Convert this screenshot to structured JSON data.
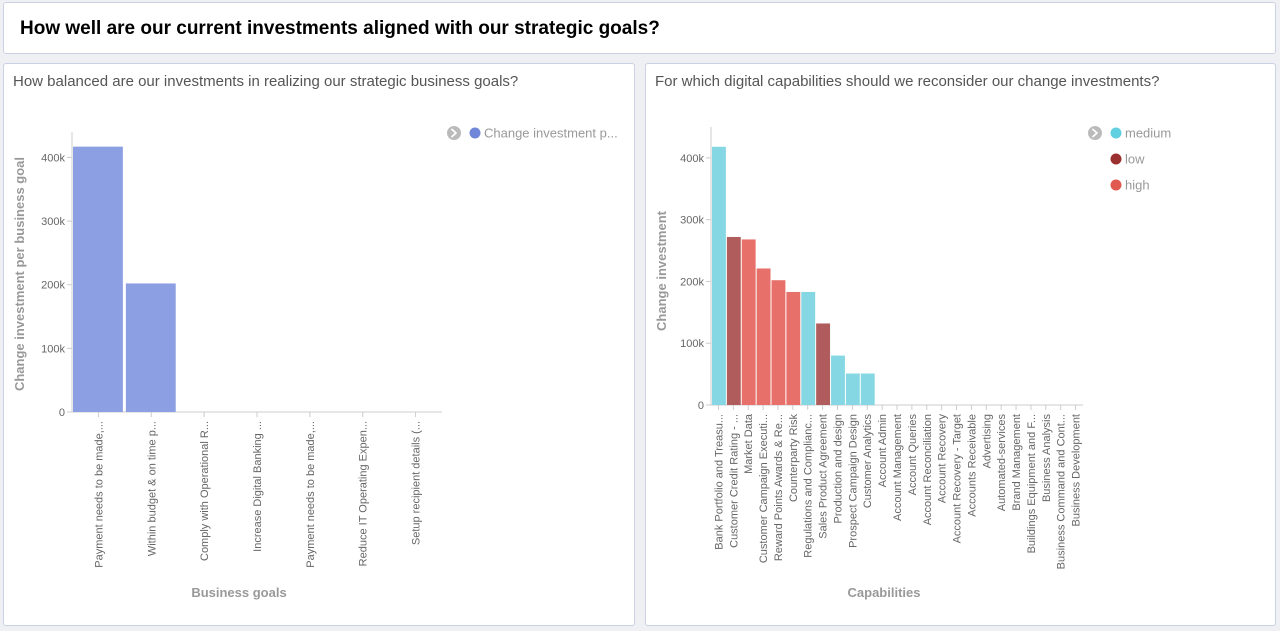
{
  "header": {
    "title": "How well are our current investments aligned with our strategic goals?"
  },
  "left_panel": {
    "title": "How balanced are our investments in realizing our strategic business goals?"
  },
  "right_panel": {
    "title": "For which digital capabilities should we reconsider our change investments?"
  },
  "chart_data": [
    {
      "type": "bar",
      "title": "How balanced are our investments in realizing our strategic business goals?",
      "xlabel": "Business goals",
      "ylabel": "Change investment per business goal",
      "ylim": [
        0,
        440000
      ],
      "yticks": [
        0,
        100000,
        200000,
        300000,
        400000
      ],
      "ytick_labels": [
        "0",
        "100k",
        "200k",
        "300k",
        "400k"
      ],
      "categories": [
        "Payment needs to be made,...",
        "Within budget & on time p...",
        "Comply with Operational R...",
        "Increase Digital Banking ...",
        "Payment needs to be made,...",
        "Reduce IT Operating Expen...",
        "Setup recipient details (..."
      ],
      "series": [
        {
          "name": "Change investment p...",
          "values": [
            417000,
            202000,
            0,
            0,
            0,
            0,
            0
          ]
        }
      ],
      "colors": {
        "bar": "#8b9fe2",
        "legend_dot": "#6f86d9",
        "legend_toggle": "#bbbbbb"
      },
      "legend": {
        "position": "top-right",
        "entries": [
          {
            "label": "Change investment p...",
            "color": "#6f86d9"
          }
        ]
      }
    },
    {
      "type": "bar",
      "title": "For which digital capabilities should we reconsider our change investments?",
      "xlabel": "Capabilities",
      "ylabel": "Change investment",
      "ylim": [
        0,
        450000
      ],
      "yticks": [
        0,
        100000,
        200000,
        300000,
        400000
      ],
      "ytick_labels": [
        "0",
        "100k",
        "200k",
        "300k",
        "400k"
      ],
      "categories": [
        "Bank Portfolio and Treasu...",
        "Customer Credit Rating - ...",
        "Market Data",
        "Customer Campaign Executi...",
        "Reward Points Awards & Re...",
        "Counterparty Risk",
        "Regulations and Complianc...",
        "Sales Product Agreement",
        "Production and design",
        "Prospect Campaign Design",
        "Customer Analytics",
        "Account Admin",
        "Account Management",
        "Account Queries",
        "Account Reconciliation",
        "Account Recovery",
        "Account Recovery - Target",
        "Accounts Receivable",
        "Advertising",
        "Automated-services",
        "Brand Management",
        "Buildings Equipment and F...",
        "Business Analysis",
        "Business Command and Cont...",
        "Business Development"
      ],
      "values": [
        418000,
        272000,
        268000,
        221000,
        202000,
        183000,
        183000,
        132000,
        80000,
        51000,
        51000,
        0,
        0,
        0,
        0,
        0,
        0,
        0,
        0,
        0,
        0,
        0,
        0,
        0,
        0
      ],
      "risk": [
        "medium",
        "low",
        "high",
        "high",
        "high",
        "high",
        "medium",
        "low",
        "medium",
        "medium",
        "medium",
        "",
        "",
        "",
        "",
        "",
        "",
        "",
        "",
        "",
        "",
        "",
        "",
        "",
        ""
      ],
      "colors": {
        "medium": "#85d8e3",
        "low": "#b05c5c",
        "high": "#e8706a",
        "legend_medium": "#62d0e0",
        "legend_low": "#9b3030",
        "legend_high": "#e05a50",
        "legend_toggle": "#bbbbbb"
      },
      "legend": {
        "position": "top-right",
        "entries": [
          {
            "label": "medium",
            "key": "medium"
          },
          {
            "label": "low",
            "key": "low"
          },
          {
            "label": "high",
            "key": "high"
          }
        ]
      }
    }
  ]
}
